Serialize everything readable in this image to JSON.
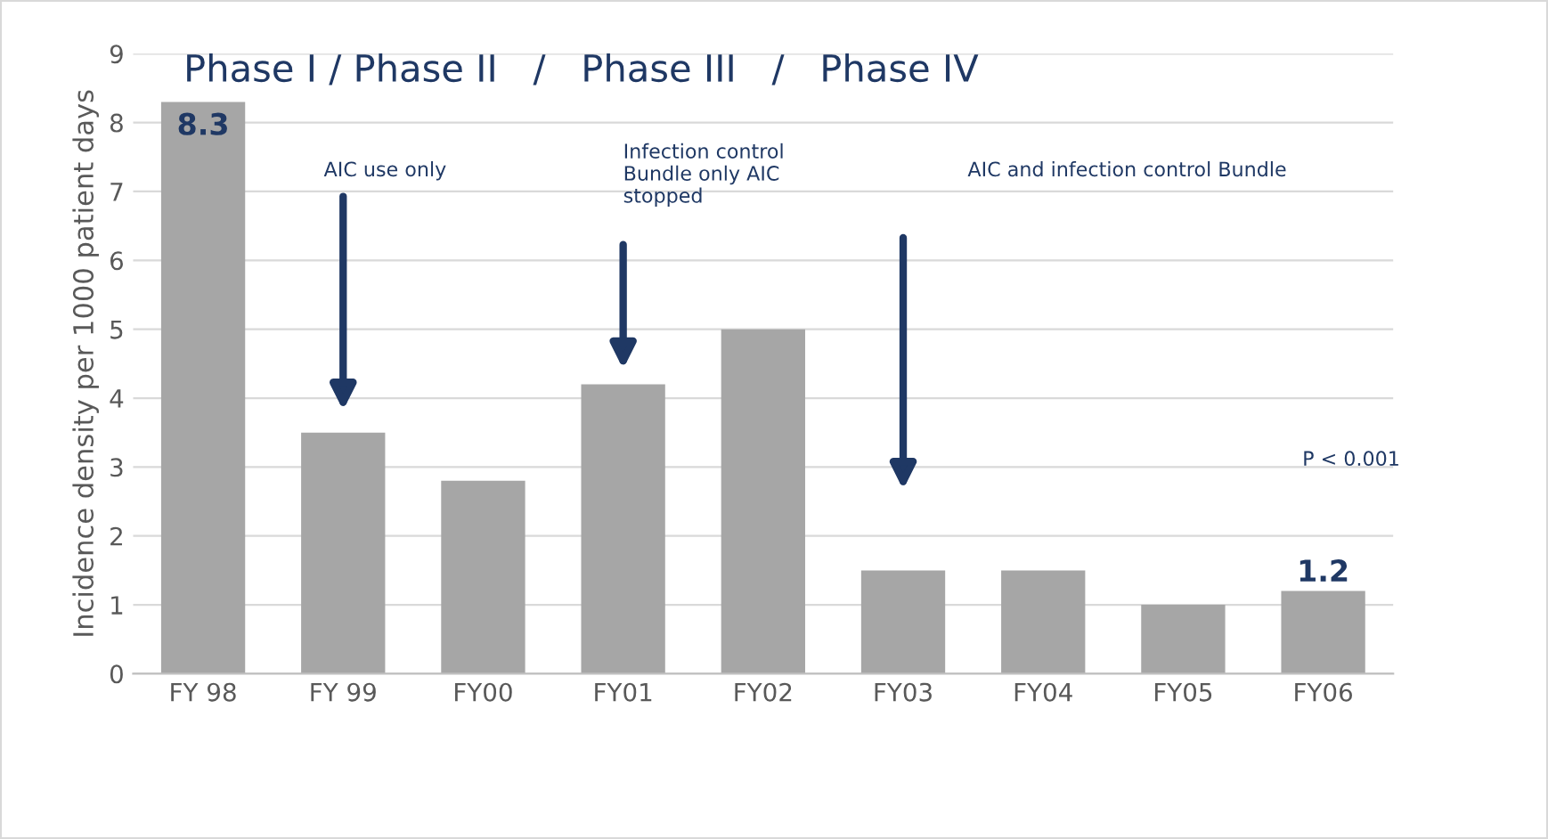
{
  "chart_data": {
    "type": "bar",
    "title": "Phase I / Phase II   /   Phase III   /   Phase IV",
    "ylabel": "Incidence density per 1000 patient days",
    "categories": [
      "FY 98",
      "FY 99",
      "FY00",
      "FY01",
      "FY02",
      "FY03",
      "FY04",
      "FY05",
      "FY06"
    ],
    "values": [
      8.3,
      3.5,
      2.8,
      4.2,
      5.0,
      1.5,
      1.5,
      1.0,
      1.2
    ],
    "value_labels": [
      "8.3",
      null,
      null,
      null,
      null,
      null,
      null,
      null,
      "1.2"
    ],
    "color": "#a6a6a6",
    "ylim": [
      0,
      9
    ],
    "yticks": [
      0,
      1,
      2,
      3,
      4,
      5,
      6,
      7,
      8,
      9
    ],
    "grid": "y",
    "annotations": [
      "AIC use only",
      "Infection control\nBundle only AIC\nstopped",
      "AIC and infection control Bundle",
      "P < 0.001"
    ]
  }
}
